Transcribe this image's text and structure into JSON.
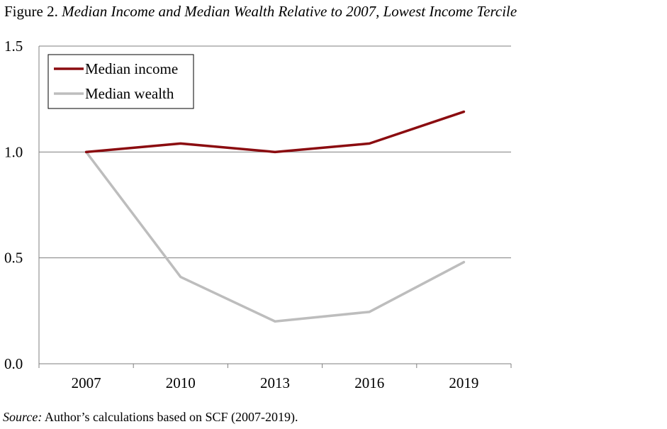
{
  "figure": {
    "title_lead": "Figure 2.",
    "title_text": "Median Income and Median Wealth Relative to 2007, Lowest Income Tercile",
    "source_label": "Source:",
    "source_text": "Author’s calculations based on SCF (2007-2019)."
  },
  "colors": {
    "income": "#8b0c10",
    "wealth": "#bdbdbd",
    "grid": "#7f7f7f"
  },
  "chart_data": {
    "type": "line",
    "x": [
      "2007",
      "2010",
      "2013",
      "2016",
      "2019"
    ],
    "ylim": [
      0.0,
      1.5
    ],
    "yticks": [
      "0.0",
      "0.5",
      "1.0",
      "1.5"
    ],
    "grid": true,
    "legend_position": "top-left",
    "series": [
      {
        "name": "Median income",
        "values": [
          1.0,
          1.04,
          1.0,
          1.04,
          1.19
        ]
      },
      {
        "name": "Median wealth",
        "values": [
          1.0,
          0.41,
          0.2,
          0.245,
          0.48
        ]
      }
    ]
  }
}
